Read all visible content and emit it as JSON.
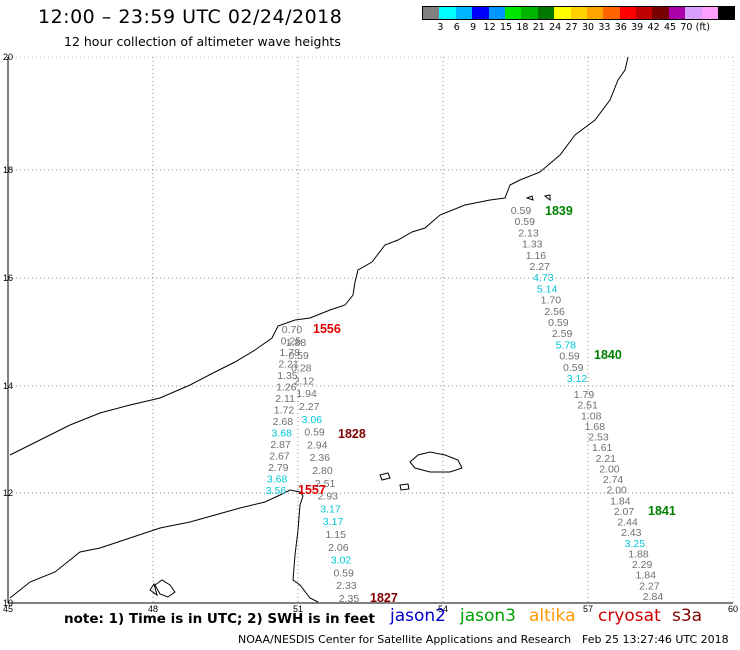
{
  "header": {
    "title": "12:00 – 23:59 UTC 02/24/2018",
    "subtitle": "12 hour collection of altimeter wave heights"
  },
  "legend": {
    "colors": [
      "#808080",
      "#00ffff",
      "#00b4ff",
      "#0000ff",
      "#0096ff",
      "#00e600",
      "#00b400",
      "#007800",
      "#ffff00",
      "#ffd200",
      "#ffa500",
      "#ff6400",
      "#ff0000",
      "#be0000",
      "#780000",
      "#aa00aa",
      "#d9a0ff",
      "#ffa0ff",
      "#000000"
    ],
    "labels": [
      "3",
      "6",
      "9",
      "12",
      "15",
      "18",
      "21",
      "24",
      "27",
      "30",
      "33",
      "36",
      "39",
      "42",
      "45",
      "70",
      "(ft)"
    ]
  },
  "axes": {
    "x_ticks": [
      "45",
      "48",
      "51",
      "54",
      "57",
      "60"
    ],
    "y_ticks": [
      "20",
      "18",
      "16",
      "14",
      "12",
      "10"
    ]
  },
  "tracks": {
    "track_a": [
      "0.70",
      "0.25",
      "1.78",
      "2.21",
      "1.35",
      "1.26",
      "2.11",
      "1.72",
      "2.68",
      "3.68",
      "2.87",
      "2.67",
      "2.79",
      "3.68",
      "3.56"
    ],
    "track_b": [
      "1.88",
      "0.59",
      "0.28",
      "2.12",
      "1.94",
      "2.27",
      "3.06",
      "0.59",
      "2.94",
      "2.36",
      "2.80",
      "2.51",
      "2.93",
      "3.17",
      "3.17",
      "1.15",
      "2.06",
      "3.02",
      "0.59",
      "2.33",
      "2.35"
    ],
    "track_c": [
      "0.59",
      "0.59",
      "2.13",
      "1.33",
      "1.16",
      "2.27",
      "4.73",
      "5.14",
      "1.70",
      "2.56",
      "0.59",
      "2.59",
      "5.78",
      "0.59",
      "0.59",
      "3.12"
    ],
    "track_d": [
      "1.79",
      "2.51",
      "1.08",
      "1.68",
      "2.53",
      "1.61",
      "2.21",
      "2.00",
      "2.74",
      "2.00",
      "1.84",
      "2.07",
      "2.44",
      "2.43",
      "3.25",
      "1.88",
      "2.29",
      "1.84",
      "2.27",
      "2.84"
    ]
  },
  "time_labels": [
    "1556",
    "1828",
    "1557",
    "1827",
    "1839",
    "1840",
    "1841"
  ],
  "footer": {
    "note": "note: 1) Time is in UTC; 2) SWH is in feet",
    "satellites": [
      {
        "name": "jason2",
        "color": "#0000cc"
      },
      {
        "name": "jason3",
        "color": "#00a000"
      },
      {
        "name": "altika",
        "color": "#ff9900"
      },
      {
        "name": "cryosat",
        "color": "#cc0000"
      },
      {
        "name": "s3a",
        "color": "#800000"
      }
    ],
    "credit": "NOAA/NESDIS Center for Satellite Applications and Research",
    "timestamp": "Feb 25 13:27:46 UTC 2018"
  },
  "colors": {
    "gray_value": "#707070",
    "cyan_value": "#00c8d8",
    "blue_value": "#0000cc",
    "green_label": "#008000",
    "red_label": "#dd0000",
    "darkred_label": "#800000"
  }
}
